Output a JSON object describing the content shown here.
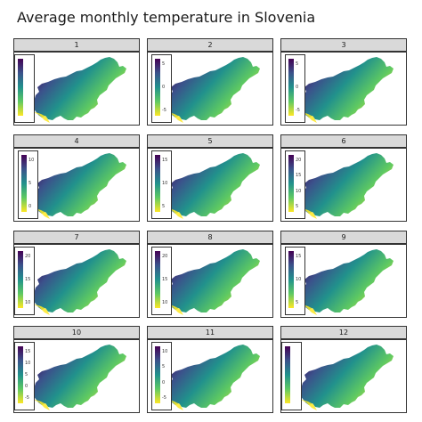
{
  "title": "Average monthly temperature in Slovenia",
  "colorscale": [
    "#440154",
    "#3b528b",
    "#21918c",
    "#5ec962",
    "#fde725"
  ],
  "panels": [
    {
      "label": "1",
      "ticks": [
        "",
        "",
        "",
        "",
        ""
      ]
    },
    {
      "label": "2",
      "ticks": [
        "-5",
        "0",
        "5"
      ]
    },
    {
      "label": "3",
      "ticks": [
        "-5",
        "0",
        "5"
      ]
    },
    {
      "label": "4",
      "ticks": [
        "0",
        "5",
        "10"
      ]
    },
    {
      "label": "5",
      "ticks": [
        "5",
        "10",
        "15"
      ]
    },
    {
      "label": "6",
      "ticks": [
        "5",
        "10",
        "15",
        "20"
      ]
    },
    {
      "label": "7",
      "ticks": [
        "10",
        "15",
        "20"
      ]
    },
    {
      "label": "8",
      "ticks": [
        "10",
        "15",
        "20"
      ]
    },
    {
      "label": "9",
      "ticks": [
        "5",
        "10",
        "15"
      ]
    },
    {
      "label": "10",
      "ticks": [
        "-5",
        "0",
        "5",
        "10",
        "15"
      ]
    },
    {
      "label": "11",
      "ticks": [
        "-5",
        "0",
        "5",
        "10"
      ]
    },
    {
      "label": "12",
      "ticks": [
        "",
        "",
        "",
        "",
        "",
        "",
        "",
        ""
      ]
    }
  ]
}
